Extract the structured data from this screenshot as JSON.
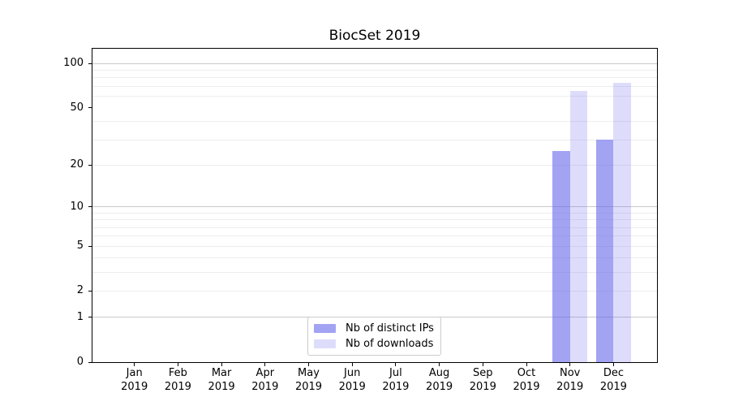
{
  "title": "BiocSet 2019",
  "chart_data": {
    "type": "bar",
    "title": "BiocSet 2019",
    "x_categories": [
      "Jan",
      "Feb",
      "Mar",
      "Apr",
      "May",
      "Jun",
      "Jul",
      "Aug",
      "Sep",
      "Oct",
      "Nov",
      "Dec"
    ],
    "x_year": "2019",
    "series": [
      {
        "name": "Nb of distinct IPs",
        "color": "rgba(102,102,235,0.6)",
        "values": [
          0,
          0,
          0,
          0,
          0,
          0,
          0,
          0,
          0,
          0,
          25,
          30
        ]
      },
      {
        "name": "Nb of downloads",
        "color": "rgba(102,102,235,0.22)",
        "values": [
          0,
          0,
          0,
          0,
          0,
          0,
          0,
          0,
          0,
          0,
          65,
          74
        ]
      }
    ],
    "y_axis": {
      "scale": "log10(value+1)",
      "tick_values": [
        100,
        50,
        20,
        10,
        5,
        2,
        1,
        0
      ],
      "tick_labels": [
        "100",
        "50",
        "20",
        "10",
        "5",
        "2",
        "1",
        "0"
      ],
      "major_grid_values": [
        1,
        10,
        100
      ],
      "minor_grid_values": [
        2,
        3,
        4,
        5,
        6,
        7,
        8,
        9,
        20,
        30,
        40,
        60,
        70,
        80,
        90
      ],
      "top_value": 125
    },
    "legend_position": "bottom-center",
    "grid": "on"
  },
  "colors": {
    "bar_base": "#6666eb",
    "major_grid": "#c9c9c9",
    "minor_grid": "#ededed",
    "spine": "#000000",
    "text": "#000000",
    "background": "#ffffff",
    "legend_border": "#cccccc"
  }
}
